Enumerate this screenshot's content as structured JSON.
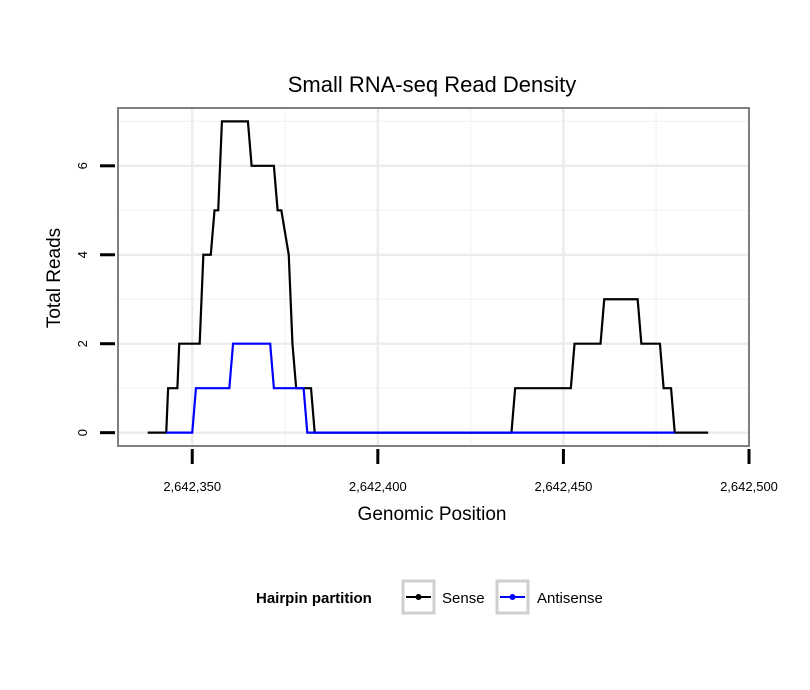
{
  "chart_data": {
    "type": "line",
    "title": "Small RNA-seq Read Density",
    "xlabel": "Genomic Position",
    "ylabel": "Total Reads",
    "xlim": [
      2642330,
      2642500
    ],
    "ylim": [
      -0.3,
      7.3
    ],
    "x_ticks": [
      2642350,
      2642400,
      2642450,
      2642500
    ],
    "x_tick_labels": [
      "2,642,350",
      "2,642,400",
      "2,642,450",
      "2,642,500"
    ],
    "y_ticks": [
      0,
      2,
      4,
      6
    ],
    "y_tick_labels": [
      "0",
      "2",
      "4",
      "6"
    ],
    "grid": true,
    "legend": {
      "title": "Hairpin partition",
      "position": "bottom",
      "entries": [
        "Sense",
        "Antisense"
      ]
    },
    "series": [
      {
        "name": "Sense",
        "color": "#000000",
        "points": [
          [
            2642338,
            0
          ],
          [
            2642343,
            0
          ],
          [
            2642343.5,
            1
          ],
          [
            2642346,
            1
          ],
          [
            2642346.5,
            2
          ],
          [
            2642352,
            2
          ],
          [
            2642353,
            4
          ],
          [
            2642355,
            4
          ],
          [
            2642356,
            5
          ],
          [
            2642357,
            5
          ],
          [
            2642358,
            7
          ],
          [
            2642365,
            7
          ],
          [
            2642366,
            6
          ],
          [
            2642372,
            6
          ],
          [
            2642373,
            5
          ],
          [
            2642374,
            5
          ],
          [
            2642376,
            4
          ],
          [
            2642377,
            2
          ],
          [
            2642378,
            1
          ],
          [
            2642382,
            1
          ],
          [
            2642383,
            0
          ],
          [
            2642436,
            0
          ],
          [
            2642437,
            1
          ],
          [
            2642452,
            1
          ],
          [
            2642453,
            2
          ],
          [
            2642460,
            2
          ],
          [
            2642461,
            3
          ],
          [
            2642470,
            3
          ],
          [
            2642471,
            2
          ],
          [
            2642476,
            2
          ],
          [
            2642477,
            1
          ],
          [
            2642479,
            1
          ],
          [
            2642480,
            0
          ],
          [
            2642489,
            0
          ]
        ]
      },
      {
        "name": "Antisense",
        "color": "#0000ff",
        "points": [
          [
            2642343,
            0
          ],
          [
            2642350,
            0
          ],
          [
            2642351,
            1
          ],
          [
            2642360,
            1
          ],
          [
            2642361,
            2
          ],
          [
            2642371,
            2
          ],
          [
            2642372,
            1
          ],
          [
            2642380,
            1
          ],
          [
            2642381,
            0
          ],
          [
            2642480,
            0
          ]
        ]
      }
    ]
  }
}
